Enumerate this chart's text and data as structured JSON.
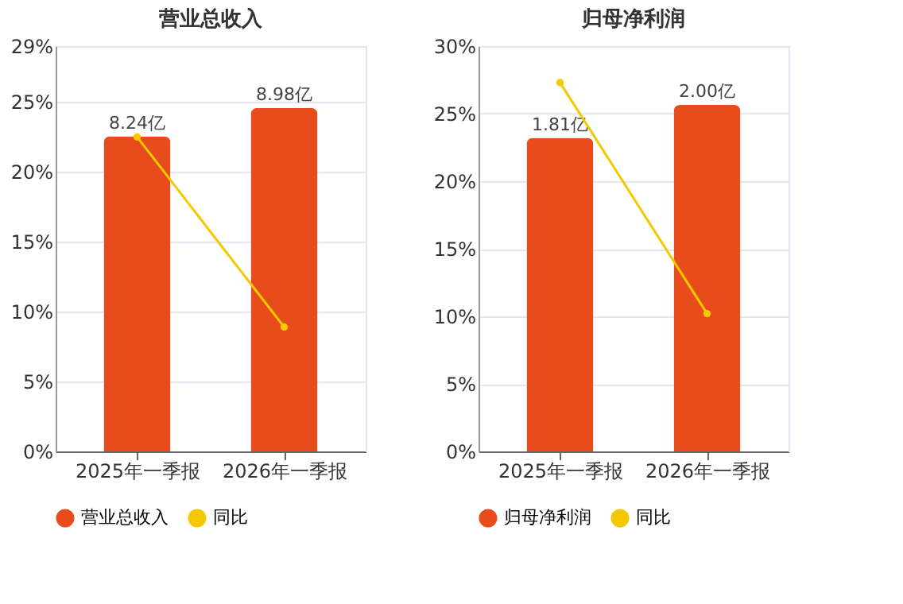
{
  "chart_data": [
    {
      "type": "bar",
      "title": "营业总收入",
      "categories": [
        "2025年一季报",
        "2026年一季报"
      ],
      "series": [
        {
          "name": "营业总收入",
          "type": "bar",
          "axis": "y2",
          "color": "#e84c1c",
          "values": [
            8.24,
            8.98
          ],
          "value_labels": [
            "8.24亿",
            "8.98亿"
          ]
        },
        {
          "name": "同比",
          "type": "line",
          "color": "#f5c800",
          "values": [
            22.5,
            8.9
          ],
          "marker": "circle"
        }
      ],
      "ylim": [
        0,
        29
      ],
      "yticks": [
        {
          "value": 0,
          "label": "0%"
        },
        {
          "value": 5,
          "label": "5%"
        },
        {
          "value": 10,
          "label": "10%"
        },
        {
          "value": 15,
          "label": "15%"
        },
        {
          "value": 20,
          "label": "20%"
        },
        {
          "value": 25,
          "label": "25%"
        },
        {
          "value": 29,
          "label": "29%"
        }
      ],
      "y2lim": [
        0,
        10.6
      ],
      "tick_labels": "xy",
      "grid": "y",
      "legend": "bottom"
    },
    {
      "type": "bar",
      "title": "归母净利润",
      "categories": [
        "2025年一季报",
        "2026年一季报"
      ],
      "series": [
        {
          "name": "归母净利润",
          "type": "bar",
          "axis": "y2",
          "color": "#e84c1c",
          "values": [
            1.81,
            2.0
          ],
          "value_labels": [
            "1.81亿",
            "2.00亿"
          ]
        },
        {
          "name": "同比",
          "type": "line",
          "color": "#f5c800",
          "values": [
            27.3,
            10.2
          ],
          "marker": "circle"
        }
      ],
      "ylim": [
        0,
        30
      ],
      "yticks": [
        {
          "value": 0,
          "label": "0%"
        },
        {
          "value": 5,
          "label": "5%"
        },
        {
          "value": 10,
          "label": "10%"
        },
        {
          "value": 15,
          "label": "15%"
        },
        {
          "value": 20,
          "label": "20%"
        },
        {
          "value": 25,
          "label": "25%"
        },
        {
          "value": 30,
          "label": "30%"
        }
      ],
      "y2lim": [
        0,
        2.34
      ],
      "tick_labels": "xy",
      "grid": "y",
      "legend": "bottom"
    }
  ]
}
